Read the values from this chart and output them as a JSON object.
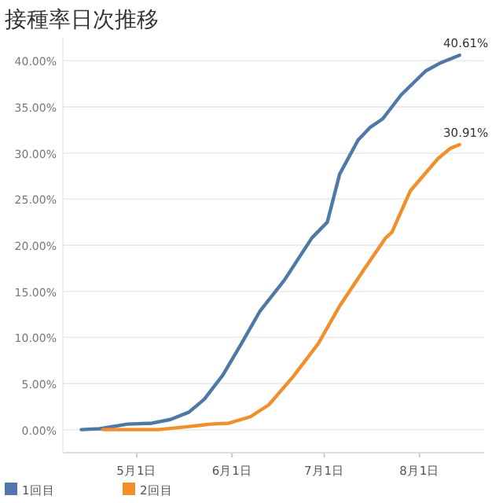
{
  "chart_data": {
    "type": "line",
    "title": "接種率日次推移",
    "x": [
      "--04-13",
      "--04-19",
      "--04-28",
      "--05-06",
      "--05-12",
      "--05-18",
      "--05-23",
      "--05-29",
      "--06-04",
      "--06-10",
      "--06-18",
      "--06-27",
      "--07-02",
      "--07-06",
      "--07-12",
      "--07-16",
      "--07-20",
      "--07-26",
      "--08-03",
      "--08-08",
      "--08-14"
    ],
    "series": [
      {
        "name": "1回目",
        "color": "#4e79a7",
        "values": [
          0,
          0.1,
          0.6,
          0.7,
          1.1,
          1.9,
          3.3,
          5.9,
          9.3,
          12.8,
          16.2,
          20.8,
          22.5,
          27.7,
          31.4,
          32.8,
          33.7,
          36.3,
          38.9,
          39.8,
          40.61
        ],
        "value_labels": [
          null,
          null,
          null,
          null,
          null,
          null,
          null,
          null,
          null,
          null,
          null,
          null,
          null,
          null,
          null,
          null,
          null,
          null,
          null,
          null,
          "40.61%"
        ]
      },
      {
        "name": "2回目",
        "color": "#f28e2b",
        "x": [
          "--04-20",
          "--05-08",
          "--05-17",
          "--05-25",
          "--05-31",
          "--06-07",
          "--06-13",
          "--06-21",
          "--06-29",
          "--07-06",
          "--07-14",
          "--07-21",
          "--07-23",
          "--07-29",
          "--08-07",
          "--08-11",
          "--08-14"
        ],
        "values": [
          0,
          0,
          0.3,
          0.6,
          0.7,
          1.4,
          2.7,
          5.8,
          9.3,
          13.4,
          17.4,
          20.8,
          21.4,
          25.9,
          29.4,
          30.5,
          30.91
        ],
        "value_labels": [
          null,
          null,
          null,
          null,
          null,
          null,
          null,
          null,
          null,
          null,
          null,
          null,
          null,
          null,
          null,
          null,
          "30.91%"
        ]
      }
    ],
    "xlim": [
      "--04-07",
      "--08-22"
    ],
    "xticks": [
      {
        "value": "--05-01",
        "label": "5月1日"
      },
      {
        "value": "--06-01",
        "label": "6月1日"
      },
      {
        "value": "--07-01",
        "label": "7月1日"
      },
      {
        "value": "--08-01",
        "label": "8月1日"
      }
    ],
    "ylim": [
      -2.5,
      42.5
    ],
    "yticks": [
      {
        "value": 0,
        "label": "0.00%"
      },
      {
        "value": 5,
        "label": "5.00%"
      },
      {
        "value": 10,
        "label": "10.00%"
      },
      {
        "value": 15,
        "label": "15.00%"
      },
      {
        "value": 20,
        "label": "20.00%"
      },
      {
        "value": 25,
        "label": "25.00%"
      },
      {
        "value": 30,
        "label": "30.00%"
      },
      {
        "value": 35,
        "label": "35.00%"
      },
      {
        "value": 40,
        "label": "40.00%"
      }
    ],
    "grid": "y",
    "legend": "bottom left",
    "marker": "none",
    "line_style": "solid"
  }
}
